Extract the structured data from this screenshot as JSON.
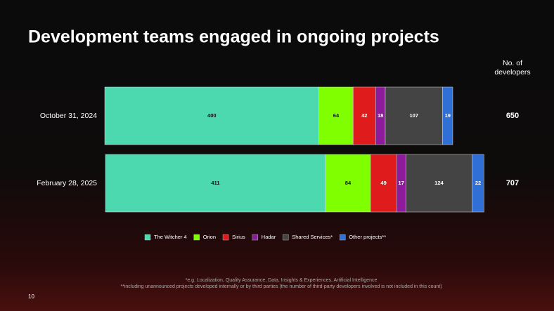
{
  "header": {
    "title": "Development teams engaged in ongoing projects",
    "page_number": 10
  },
  "chart_data": {
    "type": "bar",
    "orientation": "horizontal",
    "stacked": true,
    "categories": [
      "October 31, 2024",
      "February 28, 2025"
    ],
    "series": [
      {
        "name": "The Witcher 4",
        "color": "#4dd9b0",
        "values": [
          400,
          411
        ]
      },
      {
        "name": "Orion",
        "color": "#7fff00",
        "values": [
          64,
          84
        ]
      },
      {
        "name": "Sirius",
        "color": "#e01b1b",
        "values": [
          42,
          49
        ]
      },
      {
        "name": "Hadar",
        "color": "#8e1a9c",
        "values": [
          18,
          17
        ]
      },
      {
        "name": "Shared Services*",
        "color": "#444444",
        "values": [
          107,
          124
        ]
      },
      {
        "name": "Other projects**",
        "color": "#2f6fd6",
        "values": [
          19,
          22
        ]
      }
    ],
    "totals_label": "No. of developers",
    "totals": [
      650,
      707
    ],
    "legend": "bottom",
    "footnotes": [
      "*e.g. Localization, Quality Assurance, Data, Insights & Experiences, Artificial Intelligence",
      "**including unannounced projects developed internally or by third parties (the number of third-party developers involved is not included in this count)"
    ]
  }
}
